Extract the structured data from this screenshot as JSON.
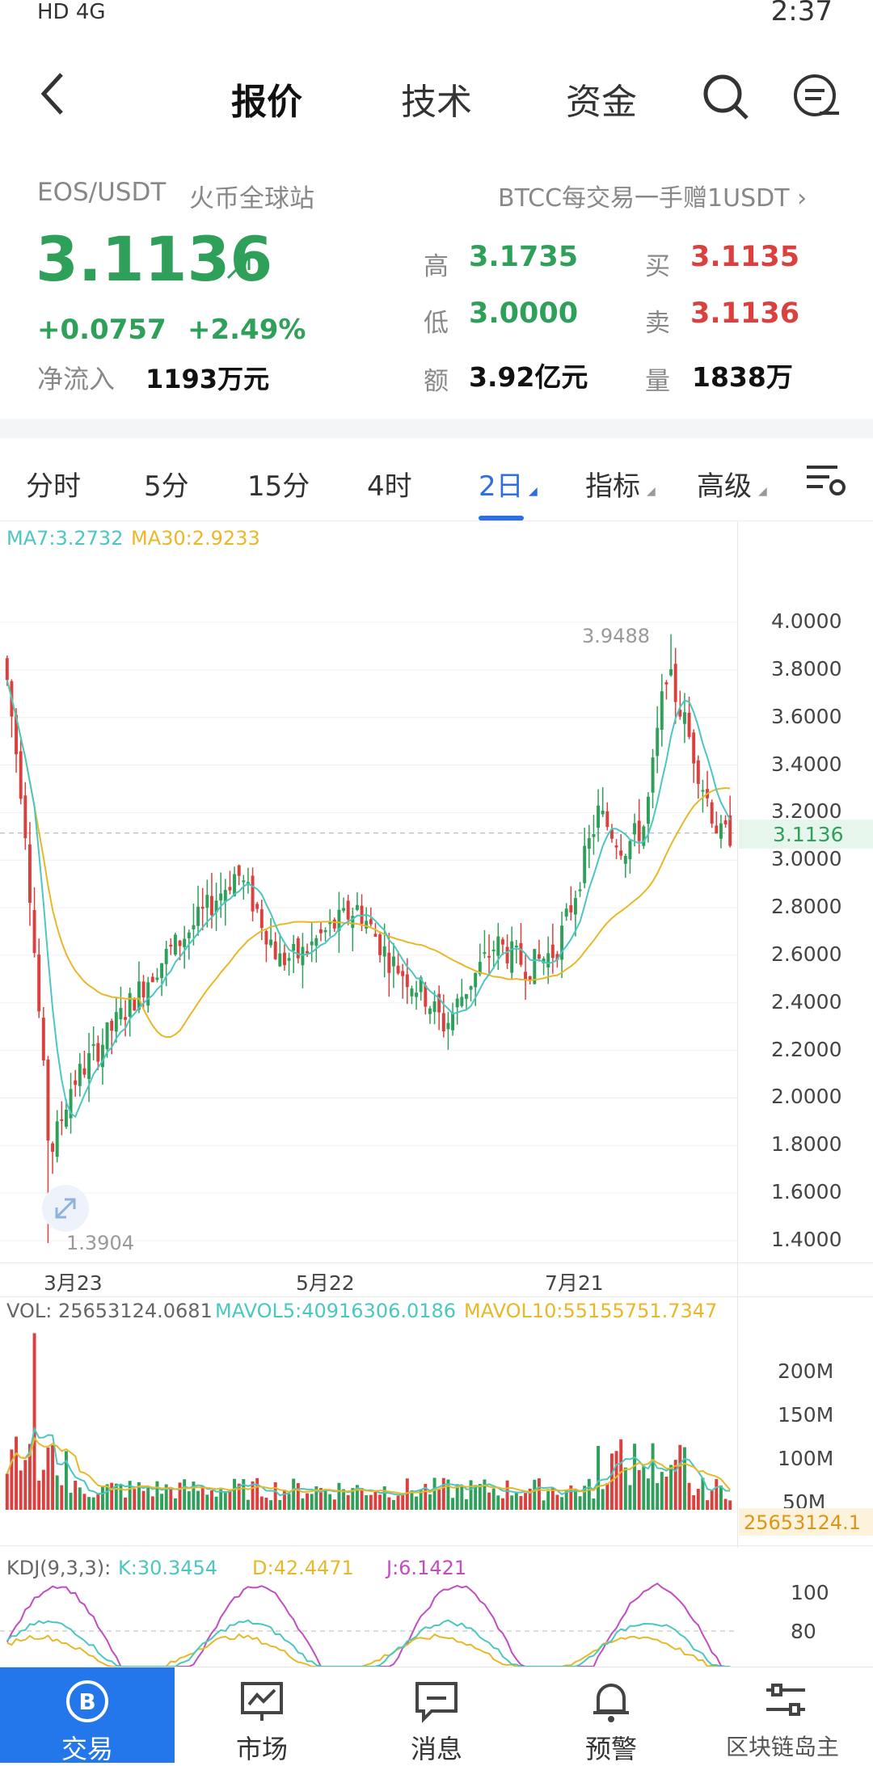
{
  "status_bar": {
    "left": "HD 4G",
    "time": "2:37"
  },
  "nav": {
    "tabs": [
      "报价",
      "技术",
      "资金"
    ],
    "active": 0
  },
  "ticker": {
    "pair": "EOS/USDT",
    "exchange": "火币全球站",
    "promo": "BTCC每交易一手赠1USDT",
    "price": "3.1136",
    "change": "+0.0757",
    "change_pct": "+2.49%",
    "inflow_label": "净流入",
    "inflow_value": "1193万元"
  },
  "stats": {
    "high_label": "高",
    "high": "3.1735",
    "low_label": "低",
    "low": "3.0000",
    "amount_label": "额",
    "amount": "3.92亿元",
    "buy_label": "买",
    "buy": "3.1135",
    "sell_label": "卖",
    "sell": "3.1136",
    "volume_label": "量",
    "volume": "1838万"
  },
  "timeframes": [
    "分时",
    "5分",
    "15分",
    "4时",
    "2日",
    "指标",
    "高级"
  ],
  "active_timeframe": 4,
  "ma_legend": {
    "ma7": "MA7:3.2732",
    "ma30": "MA30:2.9233"
  },
  "chart_data": {
    "type": "candlestick",
    "y_ticks": [
      "4.0000",
      "3.8000",
      "3.6000",
      "3.4000",
      "3.2000",
      "3.0000",
      "2.8000",
      "2.6000",
      "2.4000",
      "2.2000",
      "2.0000",
      "1.8000",
      "1.6000",
      "1.4000"
    ],
    "ylim": [
      1.4,
      4.0
    ],
    "x_ticks": [
      "3月23",
      "5月22",
      "7月21"
    ],
    "current_price": "3.1136",
    "max_label": "3.9488",
    "min_label": "1.3904",
    "colors": {
      "up": "#2ea05a",
      "down": "#d9403e",
      "ma7": "#4cc7c0",
      "ma30": "#e8b828"
    }
  },
  "vol_legend": {
    "vol": "VOL: 25653124.0681",
    "mavol5": "MAVOL5:40916306.0186",
    "mavol10": "MAVOL10:55155751.7347"
  },
  "vol_ticks": [
    "200M",
    "150M",
    "100M",
    "50M"
  ],
  "vol_current": "25653124.1",
  "kdj_legend": {
    "title": "KDJ(9,3,3):",
    "k": "K:30.3454",
    "d": "D:42.4471",
    "j": "J:6.1421"
  },
  "kdj_ticks": [
    "100",
    "80"
  ],
  "bottom_nav": [
    "交易",
    "市场",
    "消息",
    "预警"
  ],
  "watermark": "区块链岛主"
}
